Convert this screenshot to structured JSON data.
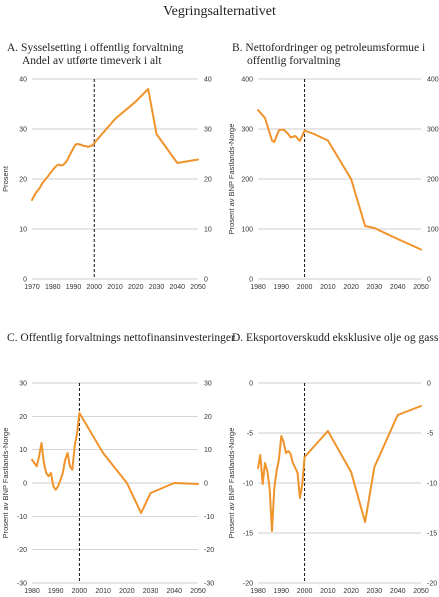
{
  "page": {
    "title": "Vegringsalternativet"
  },
  "chart_data": [
    {
      "type": "line",
      "title": "A.  Sysselsetting i offentlig forvaltning",
      "subtitle": "Andel av utførte timeverk i alt",
      "ylabel": "Prosent",
      "xlim": [
        1970,
        2050
      ],
      "ylim": [
        0,
        40
      ],
      "xticks": [
        1970,
        1980,
        1990,
        2000,
        2010,
        2020,
        2030,
        2040,
        2050
      ],
      "yticks": [
        0,
        10,
        20,
        30,
        40
      ],
      "grid": "horizontal",
      "divider_year": 2000,
      "line_color": "#f0932b",
      "x": [
        1970,
        1971,
        1972,
        1973,
        1974,
        1975,
        1976,
        1977,
        1978,
        1979,
        1980,
        1981,
        1982,
        1983,
        1984,
        1985,
        1986,
        1987,
        1988,
        1989,
        1990,
        1991,
        1992,
        1993,
        1994,
        1995,
        1996,
        1997,
        1998,
        1999,
        2000,
        2010,
        2020,
        2026,
        2030,
        2040,
        2050
      ],
      "y": [
        15.8,
        16.6,
        17.3,
        17.8,
        18.4,
        19.2,
        19.7,
        20.2,
        20.7,
        21.3,
        21.8,
        22.3,
        22.7,
        22.9,
        22.7,
        22.8,
        23.2,
        23.8,
        24.6,
        25.4,
        26.2,
        26.9,
        27.0,
        26.9,
        26.8,
        26.6,
        26.6,
        26.4,
        26.6,
        26.7,
        27.2,
        32.0,
        35.5,
        38.0,
        29.0,
        23.2,
        23.9
      ]
    },
    {
      "type": "line",
      "title": "B.  Nettofordringer og petroleumsformue i",
      "subtitle": "offentlig forvaltning",
      "ylabel": "Prosent av BNP Fastlands-Norge",
      "xlim": [
        1980,
        2050
      ],
      "ylim": [
        0,
        400
      ],
      "xticks": [
        1980,
        1990,
        2000,
        2010,
        2020,
        2030,
        2040,
        2050
      ],
      "yticks": [
        0,
        100,
        200,
        300,
        400
      ],
      "grid": "horizontal",
      "divider_year": 2000,
      "line_color": "#f0932b",
      "x": [
        1980,
        1983,
        1986,
        1987,
        1989,
        1991,
        1993,
        1994,
        1996,
        1998,
        2000,
        2004,
        2010,
        2020,
        2026,
        2030,
        2040,
        2050
      ],
      "y": [
        338,
        322,
        277,
        274,
        298,
        299,
        290,
        283,
        286,
        276,
        297,
        290,
        277,
        200,
        106,
        102,
        80,
        59
      ]
    },
    {
      "type": "line",
      "title": "C.  Offentlig forvaltnings nettofinansinvesteringer",
      "subtitle": "",
      "ylabel": "Prosent av BNP Fastlands-Norge",
      "xlim": [
        1980,
        2050
      ],
      "ylim": [
        -30,
        30
      ],
      "xticks": [
        1980,
        1990,
        2000,
        2010,
        2020,
        2030,
        2040,
        2050
      ],
      "yticks": [
        -30,
        -20,
        -10,
        0,
        10,
        20,
        30
      ],
      "grid": "horizontal",
      "divider_year": 2000,
      "line_color": "#f0932b",
      "x": [
        1980,
        1982,
        1983,
        1984,
        1985,
        1986,
        1987,
        1988,
        1989,
        1990,
        1991,
        1992,
        1993,
        1994,
        1995,
        1996,
        1997,
        1998,
        1999,
        2000,
        2010,
        2020,
        2026,
        2030,
        2040,
        2050
      ],
      "y": [
        7,
        5,
        8,
        12,
        6,
        3,
        2,
        3,
        -1,
        -2,
        -1,
        1,
        3,
        7,
        9,
        5,
        4,
        11,
        15,
        21,
        9,
        0,
        -9,
        -3,
        0,
        -0.3
      ]
    },
    {
      "type": "line",
      "title": "D.  Eksportoverskudd eksklusive olje og gass",
      "subtitle": "",
      "ylabel": "Prosent av BNP Fastlands-Norge",
      "xlim": [
        1980,
        2050
      ],
      "ylim": [
        -20,
        0
      ],
      "xticks": [
        1980,
        1990,
        2000,
        2010,
        2020,
        2030,
        2040,
        2050
      ],
      "yticks": [
        -20,
        -15,
        -10,
        -5,
        0
      ],
      "grid": "horizontal",
      "divider_year": 2000,
      "line_color": "#f0932b",
      "x": [
        1980,
        1981,
        1982,
        1983,
        1984,
        1985,
        1986,
        1987,
        1988,
        1989,
        1990,
        1991,
        1992,
        1993,
        1994,
        1995,
        1996,
        1997,
        1998,
        1999,
        2000,
        2010,
        2020,
        2026,
        2030,
        2040,
        2050
      ],
      "y": [
        -8.5,
        -7.2,
        -10.1,
        -8.0,
        -8.8,
        -10.5,
        -14.8,
        -10.5,
        -8.8,
        -7.6,
        -5.3,
        -5.9,
        -7.0,
        -6.8,
        -7.1,
        -8.0,
        -8.5,
        -9.0,
        -11.5,
        -10.2,
        -7.4,
        -4.8,
        -8.9,
        -13.9,
        -8.4,
        -3.2,
        -2.3
      ]
    }
  ]
}
